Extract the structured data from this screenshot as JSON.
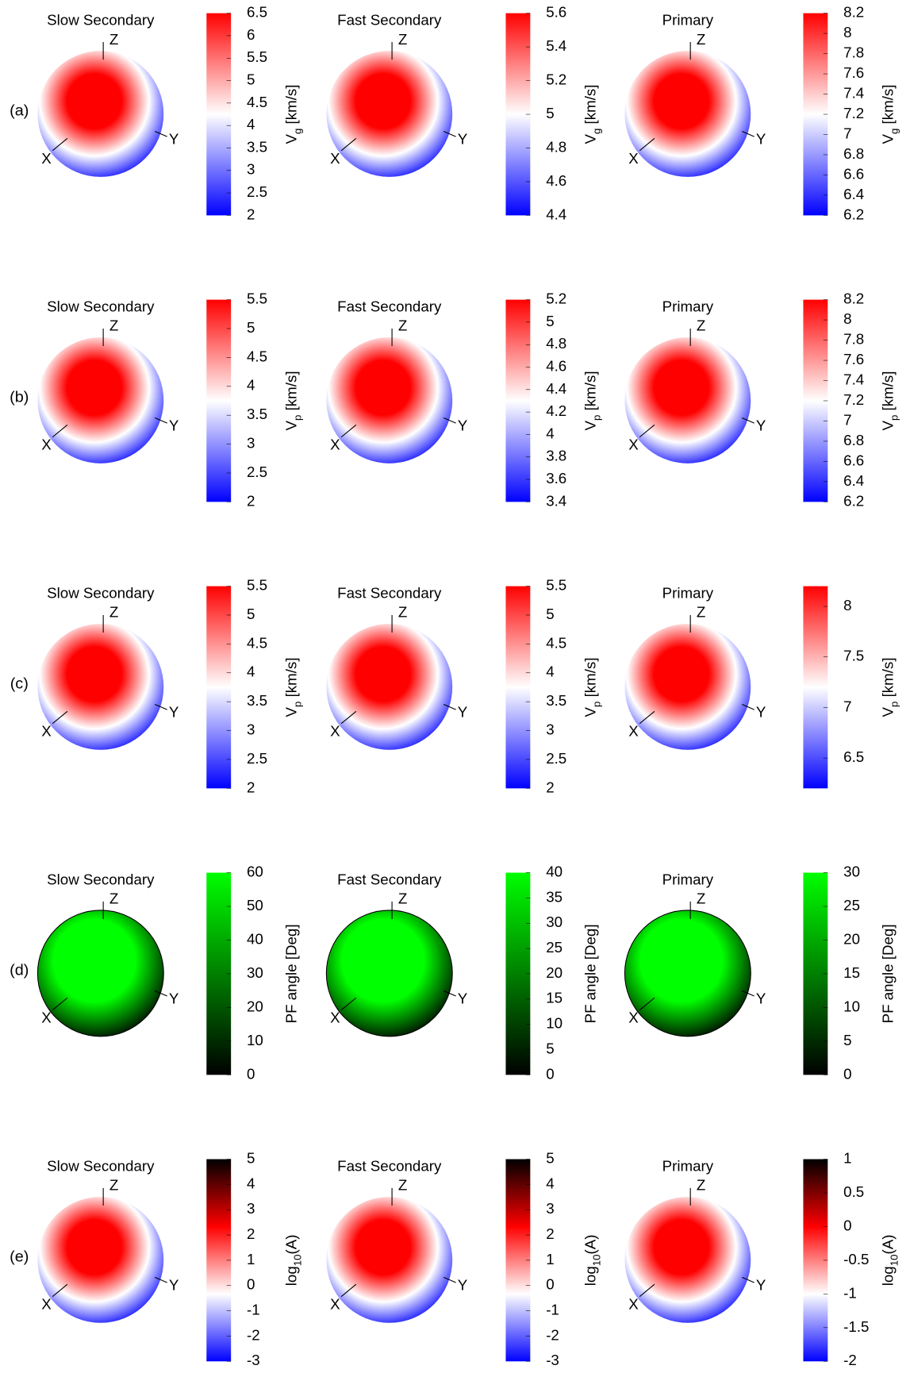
{
  "row_labels": [
    "(a)",
    "(b)",
    "(c)",
    "(d)",
    "(e)"
  ],
  "chart_data": [
    {
      "type": "sphere",
      "title": "Slow Secondary",
      "axis_labels": [
        "Z",
        "Y",
        "X"
      ],
      "colorbar_label": [
        "V",
        "g",
        " [km/s]"
      ],
      "colormap": [
        "#0000ff",
        "#ffffff",
        "#ff0000"
      ],
      "clim": [
        2,
        6.5
      ],
      "cticks": [
        2,
        2.5,
        3,
        3.5,
        4,
        4.5,
        5,
        5.5,
        6,
        6.5
      ]
    },
    {
      "type": "sphere",
      "title": "Fast Secondary",
      "axis_labels": [
        "Z",
        "Y",
        "X"
      ],
      "colorbar_label": [
        "V",
        "g",
        " [km/s]"
      ],
      "colormap": [
        "#0000ff",
        "#ffffff",
        "#ff0000"
      ],
      "clim": [
        4.4,
        5.6
      ],
      "cticks": [
        4.4,
        4.6,
        4.8,
        5,
        5.2,
        5.4,
        5.6
      ]
    },
    {
      "type": "sphere",
      "title": "Primary",
      "axis_labels": [
        "Z",
        "Y",
        "X"
      ],
      "colorbar_label": [
        "V",
        "g",
        " [km/s]"
      ],
      "colormap": [
        "#0000ff",
        "#ffffff",
        "#ff0000"
      ],
      "clim": [
        6.2,
        8.2
      ],
      "cticks": [
        6.2,
        6.4,
        6.6,
        6.8,
        7,
        7.2,
        7.4,
        7.6,
        7.8,
        8,
        8.2
      ]
    },
    {
      "type": "sphere",
      "title": "Slow Secondary",
      "axis_labels": [
        "Z",
        "Y",
        "X"
      ],
      "colorbar_label": [
        "V",
        "p",
        " [km/s]"
      ],
      "colormap": [
        "#0000ff",
        "#ffffff",
        "#ff0000"
      ],
      "clim": [
        2,
        5.5
      ],
      "cticks": [
        2,
        2.5,
        3,
        3.5,
        4,
        4.5,
        5,
        5.5
      ]
    },
    {
      "type": "sphere",
      "title": "Fast Secondary",
      "axis_labels": [
        "Z",
        "Y",
        "X"
      ],
      "colorbar_label": [
        "V",
        "p",
        " [km/s]"
      ],
      "colormap": [
        "#0000ff",
        "#ffffff",
        "#ff0000"
      ],
      "clim": [
        3.4,
        5.2
      ],
      "cticks": [
        3.4,
        3.6,
        3.8,
        4,
        4.2,
        4.4,
        4.6,
        4.8,
        5,
        5.2
      ]
    },
    {
      "type": "sphere",
      "title": "Primary",
      "axis_labels": [
        "Z",
        "Y",
        "X"
      ],
      "colorbar_label": [
        "V",
        "p",
        " [km/s]"
      ],
      "colormap": [
        "#0000ff",
        "#ffffff",
        "#ff0000"
      ],
      "clim": [
        6.2,
        8.2
      ],
      "cticks": [
        6.2,
        6.4,
        6.6,
        6.8,
        7,
        7.2,
        7.4,
        7.6,
        7.8,
        8,
        8.2
      ]
    },
    {
      "type": "sphere",
      "title": "Slow Secondary",
      "axis_labels": [
        "Z",
        "Y",
        "X"
      ],
      "colorbar_label": [
        "V",
        "p",
        " [km/s]"
      ],
      "colormap": [
        "#0000ff",
        "#ffffff",
        "#ff0000"
      ],
      "clim": [
        2,
        5.5
      ],
      "cticks": [
        2,
        2.5,
        3,
        3.5,
        4,
        4.5,
        5,
        5.5
      ]
    },
    {
      "type": "sphere",
      "title": "Fast Secondary",
      "axis_labels": [
        "Z",
        "Y",
        "X"
      ],
      "colorbar_label": [
        "V",
        "p",
        " [km/s]"
      ],
      "colormap": [
        "#0000ff",
        "#ffffff",
        "#ff0000"
      ],
      "clim": [
        2,
        5.5
      ],
      "cticks": [
        2,
        2.5,
        3,
        3.5,
        4,
        4.5,
        5,
        5.5
      ]
    },
    {
      "type": "sphere",
      "title": "Primary",
      "axis_labels": [
        "Z",
        "Y",
        "X"
      ],
      "colorbar_label": [
        "V",
        "p",
        " [km/s]"
      ],
      "colormap": [
        "#0000ff",
        "#ffffff",
        "#ff0000"
      ],
      "clim": [
        6.2,
        8.2
      ],
      "cticks": [
        6.5,
        7,
        7.5,
        8
      ]
    },
    {
      "type": "sphere",
      "title": "Slow Secondary",
      "axis_labels": [
        "Z",
        "Y",
        "X"
      ],
      "colorbar_label": [
        "PF angle [Deg]"
      ],
      "colormap": [
        "#000000",
        "#00ff00"
      ],
      "clim": [
        0,
        60
      ],
      "cticks": [
        0,
        10,
        20,
        30,
        40,
        50,
        60
      ]
    },
    {
      "type": "sphere",
      "title": "Fast Secondary",
      "axis_labels": [
        "Z",
        "Y",
        "X"
      ],
      "colorbar_label": [
        "PF angle [Deg]"
      ],
      "colormap": [
        "#000000",
        "#00ff00"
      ],
      "clim": [
        0,
        40
      ],
      "cticks": [
        0,
        5,
        10,
        15,
        20,
        25,
        30,
        35,
        40
      ]
    },
    {
      "type": "sphere",
      "title": "Primary",
      "axis_labels": [
        "Z",
        "Y",
        "X"
      ],
      "colorbar_label": [
        "PF angle [Deg]"
      ],
      "colormap": [
        "#000000",
        "#00ff00"
      ],
      "clim": [
        0,
        30
      ],
      "cticks": [
        0,
        5,
        10,
        15,
        20,
        25,
        30
      ]
    },
    {
      "type": "sphere",
      "title": "Slow Secondary",
      "axis_labels": [
        "Z",
        "Y",
        "X"
      ],
      "colorbar_label": [
        "log",
        "10",
        "(A)"
      ],
      "colormap": [
        "#0000ff",
        "#ffffff",
        "#ff0000",
        "#000000"
      ],
      "clim": [
        -3,
        5
      ],
      "cticks": [
        -3,
        -2,
        -1,
        0,
        1,
        2,
        3,
        4,
        5
      ]
    },
    {
      "type": "sphere",
      "title": "Fast Secondary",
      "axis_labels": [
        "Z",
        "Y",
        "X"
      ],
      "colorbar_label": [
        "log",
        "10",
        "(A)"
      ],
      "colormap": [
        "#0000ff",
        "#ffffff",
        "#ff0000",
        "#000000"
      ],
      "clim": [
        -3,
        5
      ],
      "cticks": [
        -3,
        -2,
        -1,
        0,
        1,
        2,
        3,
        4,
        5
      ]
    },
    {
      "type": "sphere",
      "title": "Primary",
      "axis_labels": [
        "Z",
        "Y",
        "X"
      ],
      "colorbar_label": [
        "log",
        "10",
        "(A)"
      ],
      "colormap": [
        "#0000ff",
        "#ffffff",
        "#ff0000",
        "#000000"
      ],
      "clim": [
        -2,
        1
      ],
      "cticks": [
        -2,
        -1.5,
        -1,
        -0.5,
        0,
        0.5,
        1
      ]
    }
  ]
}
